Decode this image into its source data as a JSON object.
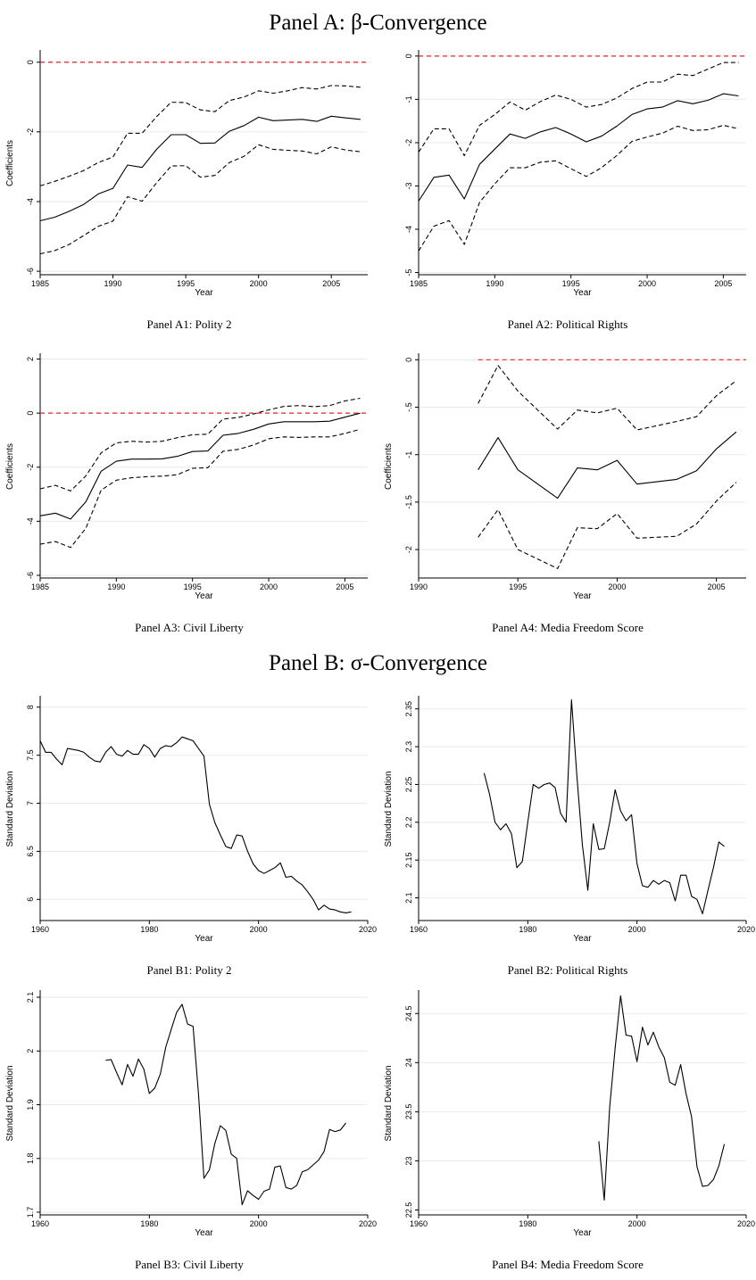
{
  "sections": [
    {
      "title": "Panel A: β-Convergence"
    },
    {
      "title": "Panel B: σ-Convergence"
    }
  ],
  "chart_data": [
    {
      "type": "line",
      "caption": "Panel A1: Polity 2",
      "xlabel": "Year",
      "ylabel": "Coefficients",
      "xlim": [
        1985,
        2007.5
      ],
      "ylim": [
        -6.1,
        0.3
      ],
      "xticks": [
        1985,
        1990,
        1995,
        2000,
        2005
      ],
      "yticks": [
        -6,
        -4,
        -2,
        0
      ],
      "reference_line": 0,
      "x": [
        1985,
        1986,
        1987,
        1988,
        1989,
        1990,
        1991,
        1992,
        1993,
        1994,
        1995,
        1996,
        1997,
        1998,
        1999,
        2000,
        2001,
        2002,
        2003,
        2004,
        2005,
        2006,
        2007
      ],
      "series": [
        {
          "values": [
            -4.55,
            -4.45,
            -4.28,
            -4.08,
            -3.78,
            -3.62,
            -2.95,
            -3.02,
            -2.5,
            -2.08,
            -2.08,
            -2.33,
            -2.32,
            -1.98,
            -1.82,
            -1.58,
            -1.68,
            -1.66,
            -1.64,
            -1.7,
            -1.55,
            -1.6,
            -1.64
          ]
        },
        {
          "values": [
            -3.55,
            -3.42,
            -3.27,
            -3.11,
            -2.88,
            -2.72,
            -2.04,
            -2.04,
            -1.56,
            -1.15,
            -1.16,
            -1.37,
            -1.42,
            -1.1,
            -1.0,
            -0.82,
            -0.89,
            -0.82,
            -0.73,
            -0.77,
            -0.67,
            -0.68,
            -0.72
          ],
          "style": "dashed"
        },
        {
          "values": [
            -5.5,
            -5.41,
            -5.23,
            -4.97,
            -4.71,
            -4.56,
            -3.86,
            -3.99,
            -3.46,
            -2.98,
            -2.97,
            -3.3,
            -3.25,
            -2.88,
            -2.7,
            -2.37,
            -2.5,
            -2.53,
            -2.55,
            -2.63,
            -2.43,
            -2.52,
            -2.57
          ],
          "style": "dashed"
        }
      ]
    },
    {
      "type": "line",
      "caption": "Panel A2: Political Rights",
      "xlabel": "Year",
      "ylabel": "",
      "xlim": [
        1985,
        2006.5
      ],
      "ylim": [
        -5.05,
        0.1
      ],
      "xticks": [
        1985,
        1990,
        1995,
        2000,
        2005
      ],
      "yticks": [
        -5,
        -4,
        -3,
        -2,
        -1,
        0
      ],
      "reference_line": 0,
      "x": [
        1985,
        1986,
        1987,
        1988,
        1989,
        1990,
        1991,
        1992,
        1993,
        1994,
        1995,
        1996,
        1997,
        1998,
        1999,
        2000,
        2001,
        2002,
        2003,
        2004,
        2005,
        2006
      ],
      "series": [
        {
          "values": [
            -3.35,
            -2.8,
            -2.75,
            -3.3,
            -2.5,
            -2.15,
            -1.8,
            -1.9,
            -1.75,
            -1.65,
            -1.8,
            -1.98,
            -1.85,
            -1.62,
            -1.35,
            -1.22,
            -1.18,
            -1.03,
            -1.1,
            -1.02,
            -0.87,
            -0.92
          ]
        },
        {
          "values": [
            -2.22,
            -1.68,
            -1.68,
            -2.3,
            -1.6,
            -1.35,
            -1.06,
            -1.25,
            -1.05,
            -0.9,
            -1.0,
            -1.18,
            -1.12,
            -0.97,
            -0.75,
            -0.6,
            -0.6,
            -0.42,
            -0.45,
            -0.3,
            -0.15,
            -0.15
          ],
          "style": "dashed"
        },
        {
          "values": [
            -4.5,
            -3.93,
            -3.8,
            -4.35,
            -3.38,
            -2.95,
            -2.58,
            -2.58,
            -2.45,
            -2.42,
            -2.6,
            -2.78,
            -2.58,
            -2.3,
            -1.97,
            -1.87,
            -1.78,
            -1.62,
            -1.72,
            -1.7,
            -1.6,
            -1.68
          ],
          "style": "dashed"
        }
      ]
    },
    {
      "type": "line",
      "caption": "Panel A3: Civil Liberty",
      "xlabel": "Year",
      "ylabel": "Coefficients",
      "xlim": [
        1985,
        2006.5
      ],
      "ylim": [
        -6.1,
        2.15
      ],
      "xticks": [
        1985,
        1990,
        1995,
        2000,
        2005
      ],
      "yticks": [
        -6,
        -4,
        -2,
        0,
        2
      ],
      "reference_line": 0,
      "x": [
        1985,
        1986,
        1987,
        1988,
        1989,
        1990,
        1991,
        1992,
        1993,
        1994,
        1995,
        1996,
        1997,
        1998,
        1999,
        2000,
        2001,
        2002,
        2003,
        2004,
        2005,
        2006
      ],
      "series": [
        {
          "values": [
            -3.8,
            -3.7,
            -3.92,
            -3.28,
            -2.15,
            -1.78,
            -1.7,
            -1.7,
            -1.69,
            -1.6,
            -1.42,
            -1.4,
            -0.82,
            -0.75,
            -0.6,
            -0.4,
            -0.32,
            -0.32,
            -0.32,
            -0.3,
            -0.15,
            0.0
          ]
        },
        {
          "values": [
            -2.8,
            -2.67,
            -2.88,
            -2.32,
            -1.47,
            -1.1,
            -1.04,
            -1.07,
            -1.04,
            -0.91,
            -0.8,
            -0.78,
            -0.22,
            -0.16,
            -0.03,
            0.12,
            0.25,
            0.28,
            0.24,
            0.28,
            0.45,
            0.55
          ],
          "style": "dashed"
        },
        {
          "values": [
            -4.85,
            -4.75,
            -4.97,
            -4.26,
            -2.85,
            -2.48,
            -2.39,
            -2.35,
            -2.33,
            -2.28,
            -2.04,
            -2.02,
            -1.41,
            -1.34,
            -1.18,
            -0.95,
            -0.88,
            -0.9,
            -0.88,
            -0.88,
            -0.75,
            -0.6
          ],
          "style": "dashed"
        }
      ]
    },
    {
      "type": "line",
      "caption": "Panel A4: Media Freedom Score",
      "xlabel": "Year",
      "ylabel": "Coefficients",
      "xlim": [
        1990,
        2006.5
      ],
      "ylim": [
        -2.3,
        0.05
      ],
      "xticks": [
        1990,
        1995,
        2000,
        2005
      ],
      "yticks": [
        -2,
        -1.5,
        -1,
        -0.5,
        0
      ],
      "ytick_labels": [
        "-2",
        "-1.5",
        "-1",
        "-.5",
        "0"
      ],
      "reference_line": 0,
      "reference_start": 1993,
      "x": [
        1993,
        1994,
        1995,
        1997,
        1998,
        1999,
        2000,
        2001,
        2003,
        2004,
        2005,
        2006
      ],
      "series": [
        {
          "values": [
            -1.16,
            -0.82,
            -1.16,
            -1.46,
            -1.14,
            -1.16,
            -1.06,
            -1.31,
            -1.26,
            -1.17,
            -0.94,
            -0.76
          ]
        },
        {
          "values": [
            -0.46,
            -0.06,
            -0.33,
            -0.73,
            -0.53,
            -0.56,
            -0.51,
            -0.74,
            -0.65,
            -0.6,
            -0.38,
            -0.22
          ],
          "style": "dashed"
        },
        {
          "values": [
            -1.87,
            -1.58,
            -2.0,
            -2.2,
            -1.77,
            -1.78,
            -1.62,
            -1.88,
            -1.86,
            -1.73,
            -1.49,
            -1.29
          ],
          "style": "dashed"
        }
      ]
    },
    {
      "type": "line",
      "caption": "Panel B1: Polity 2",
      "xlabel": "Year",
      "ylabel": "Standard Deviation",
      "xlim": [
        1960,
        2020
      ],
      "ylim": [
        5.78,
        8.1
      ],
      "xticks": [
        1960,
        1980,
        2000,
        2020
      ],
      "yticks": [
        6,
        6.5,
        7,
        7.5,
        8
      ],
      "x": [
        1960,
        1961,
        1962,
        1963,
        1964,
        1965,
        1966,
        1967,
        1968,
        1969,
        1970,
        1971,
        1972,
        1973,
        1974,
        1975,
        1976,
        1977,
        1978,
        1979,
        1980,
        1981,
        1982,
        1983,
        1984,
        1985,
        1986,
        1987,
        1988,
        1989,
        1990,
        1991,
        1992,
        1993,
        1994,
        1995,
        1996,
        1997,
        1998,
        1999,
        2000,
        2001,
        2002,
        2003,
        2004,
        2005,
        2006,
        2007,
        2008,
        2009,
        2010,
        2011,
        2012,
        2013,
        2014,
        2015,
        2016,
        2017
      ],
      "series": [
        {
          "values": [
            7.65,
            7.53,
            7.53,
            7.46,
            7.4,
            7.57,
            7.56,
            7.55,
            7.53,
            7.48,
            7.44,
            7.43,
            7.53,
            7.59,
            7.51,
            7.49,
            7.55,
            7.51,
            7.51,
            7.61,
            7.57,
            7.48,
            7.57,
            7.6,
            7.59,
            7.63,
            7.69,
            7.67,
            7.65,
            7.57,
            7.49,
            6.99,
            6.8,
            6.67,
            6.55,
            6.53,
            6.67,
            6.66,
            6.5,
            6.37,
            6.3,
            6.27,
            6.3,
            6.33,
            6.38,
            6.23,
            6.24,
            6.19,
            6.15,
            6.08,
            6.0,
            5.89,
            5.94,
            5.9,
            5.89,
            5.87,
            5.86,
            5.87
          ]
        }
      ]
    },
    {
      "type": "line",
      "caption": "Panel B2: Political Rights",
      "xlabel": "Year",
      "ylabel": "Standard Deviation",
      "xlim": [
        1960,
        2020
      ],
      "ylim": [
        2.07,
        2.365
      ],
      "xticks": [
        1960,
        1980,
        2000,
        2020
      ],
      "yticks": [
        2.1,
        2.15,
        2.2,
        2.25,
        2.3,
        2.35
      ],
      "x": [
        1972,
        1973,
        1974,
        1975,
        1976,
        1977,
        1978,
        1979,
        1980,
        1981,
        1982,
        1983,
        1984,
        1985,
        1986,
        1987,
        1988,
        1989,
        1990,
        1991,
        1992,
        1993,
        1994,
        1995,
        1996,
        1997,
        1998,
        1999,
        2000,
        2001,
        2002,
        2003,
        2004,
        2005,
        2006,
        2007,
        2008,
        2009,
        2010,
        2011,
        2012,
        2013,
        2014,
        2015,
        2016
      ],
      "series": [
        {
          "values": [
            2.265,
            2.237,
            2.2,
            2.19,
            2.198,
            2.185,
            2.14,
            2.148,
            2.2,
            2.25,
            2.245,
            2.25,
            2.252,
            2.246,
            2.212,
            2.2,
            2.362,
            2.26,
            2.17,
            2.11,
            2.198,
            2.164,
            2.165,
            2.2,
            2.243,
            2.215,
            2.202,
            2.21,
            2.145,
            2.116,
            2.114,
            2.123,
            2.118,
            2.123,
            2.12,
            2.096,
            2.13,
            2.13,
            2.102,
            2.098,
            2.079,
            2.11,
            2.14,
            2.174,
            2.168
          ]
        }
      ]
    },
    {
      "type": "line",
      "caption": "Panel B3: Civil Liberty",
      "xlabel": "Year",
      "ylabel": "Standard Deviation",
      "xlim": [
        1960,
        2020
      ],
      "ylim": [
        1.695,
        2.11
      ],
      "xticks": [
        1960,
        1980,
        2000,
        2020
      ],
      "yticks": [
        1.7,
        1.8,
        1.9,
        2,
        2.1
      ],
      "x": [
        1972,
        1973,
        1974,
        1975,
        1976,
        1977,
        1978,
        1979,
        1980,
        1981,
        1982,
        1983,
        1984,
        1985,
        1986,
        1987,
        1988,
        1989,
        1990,
        1991,
        1992,
        1993,
        1994,
        1995,
        1996,
        1997,
        1998,
        1999,
        2000,
        2001,
        2002,
        2003,
        2004,
        2005,
        2006,
        2007,
        2008,
        2009,
        2010,
        2011,
        2012,
        2013,
        2014,
        2015,
        2016
      ],
      "series": [
        {
          "values": [
            1.983,
            1.984,
            1.96,
            1.937,
            1.975,
            1.953,
            1.985,
            1.966,
            1.921,
            1.931,
            1.957,
            2.007,
            2.04,
            2.072,
            2.087,
            2.05,
            2.046,
            1.92,
            1.763,
            1.779,
            1.828,
            1.861,
            1.852,
            1.808,
            1.8,
            1.714,
            1.74,
            1.731,
            1.724,
            1.739,
            1.743,
            1.784,
            1.786,
            1.746,
            1.743,
            1.75,
            1.775,
            1.779,
            1.788,
            1.797,
            1.813,
            1.854,
            1.85,
            1.853,
            1.866
          ]
        }
      ]
    },
    {
      "type": "line",
      "caption": "Panel B4: Media Freedom Score",
      "xlabel": "Year",
      "ylabel": "Standard Deviation",
      "xlim": [
        1960,
        2020
      ],
      "ylim": [
        22.45,
        24.72
      ],
      "xticks": [
        1960,
        1980,
        2000,
        2020
      ],
      "yticks": [
        22.5,
        23,
        23.5,
        24,
        24.5
      ],
      "x": [
        1993,
        1994,
        1995,
        1996,
        1997,
        1998,
        1999,
        2000,
        2001,
        2002,
        2003,
        2004,
        2005,
        2006,
        2007,
        2008,
        2009,
        2010,
        2011,
        2012,
        2013,
        2014,
        2015,
        2016
      ],
      "series": [
        {
          "values": [
            23.2,
            22.6,
            23.55,
            24.15,
            24.68,
            24.28,
            24.27,
            24.01,
            24.36,
            24.18,
            24.31,
            24.16,
            24.05,
            23.8,
            23.77,
            23.98,
            23.68,
            23.45,
            22.94,
            22.74,
            22.75,
            22.81,
            22.95,
            23.17
          ]
        }
      ]
    }
  ]
}
